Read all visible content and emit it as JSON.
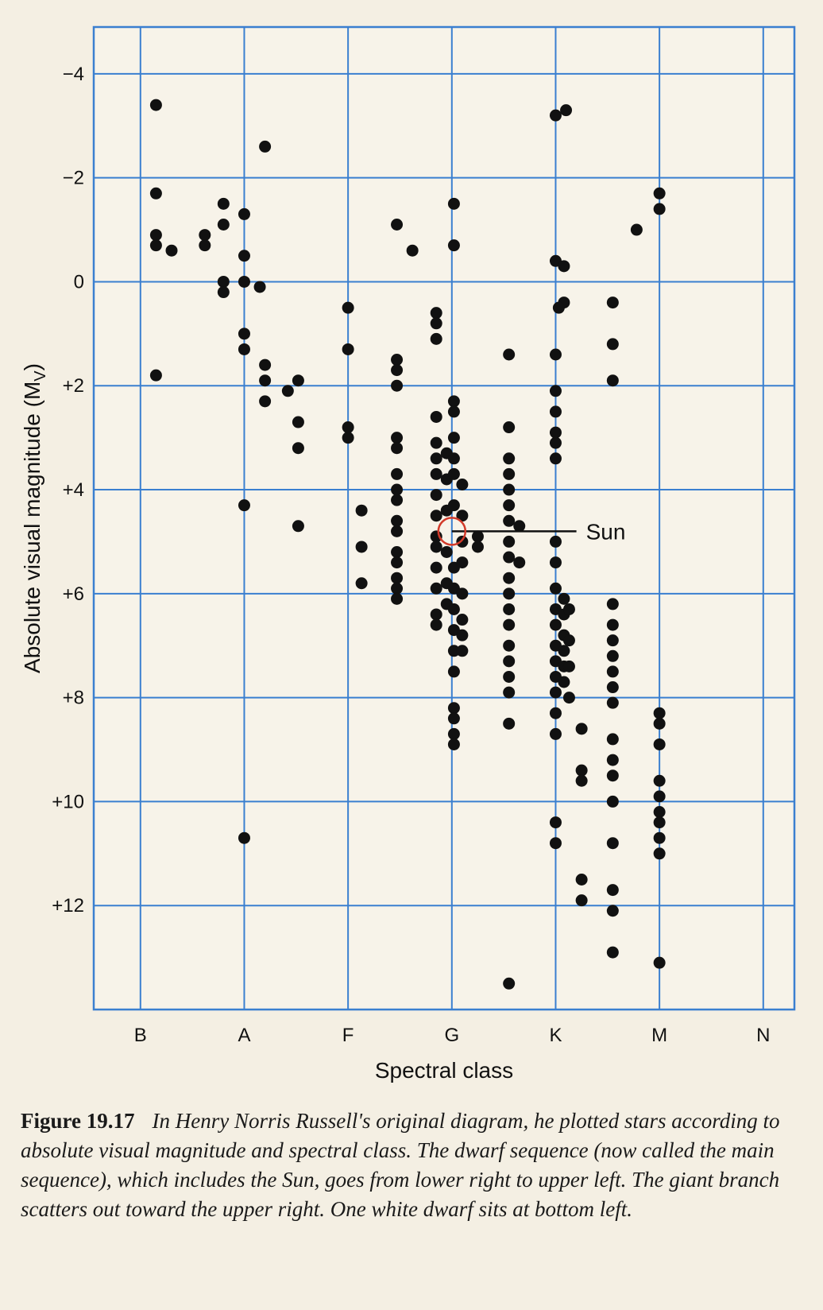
{
  "chart_data": {
    "type": "scatter",
    "title": "",
    "xlabel": "Spectral class",
    "ylabel": "Absolute visual magnitude (M",
    "ylabel_sub": "V",
    "ylabel_close": ")",
    "x_categories": [
      "B",
      "A",
      "F",
      "G",
      "K",
      "M",
      "N"
    ],
    "xlim": [
      -0.45,
      6.3
    ],
    "ylim": [
      14.0,
      -4.9
    ],
    "y_inverted": true,
    "y_ticks": [
      -4,
      -2,
      0,
      2,
      4,
      6,
      8,
      10,
      12
    ],
    "y_tick_labels": [
      "−4",
      "−2",
      "0",
      "+2",
      "+4",
      "+6",
      "+8",
      "+10",
      "+12"
    ],
    "grid": true,
    "grid_color": "#3a7fd0",
    "point_color": "#111111",
    "annotation": {
      "text": "Sun",
      "x": 3.0,
      "y": 4.8,
      "line_to_x": 4.2,
      "marker_color": "#d23a2a"
    },
    "points": [
      [
        0.15,
        -3.4
      ],
      [
        0.15,
        -1.7
      ],
      [
        0.15,
        -0.9
      ],
      [
        0.15,
        -0.7
      ],
      [
        0.3,
        -0.6
      ],
      [
        0.15,
        1.8
      ],
      [
        0.62,
        -0.9
      ],
      [
        0.62,
        -0.7
      ],
      [
        0.8,
        -1.5
      ],
      [
        0.8,
        -1.1
      ],
      [
        0.8,
        0
      ],
      [
        0.8,
        0.2
      ],
      [
        1.0,
        -1.3
      ],
      [
        1.0,
        -0.5
      ],
      [
        1.0,
        0
      ],
      [
        1.0,
        1.0
      ],
      [
        1.0,
        1.3
      ],
      [
        1.0,
        4.3
      ],
      [
        1.0,
        10.7
      ],
      [
        1.15,
        0.1
      ],
      [
        1.2,
        -2.6
      ],
      [
        1.2,
        1.6
      ],
      [
        1.2,
        1.9
      ],
      [
        1.2,
        2.3
      ],
      [
        1.42,
        2.1
      ],
      [
        1.52,
        1.9
      ],
      [
        1.52,
        2.7
      ],
      [
        1.52,
        3.2
      ],
      [
        1.52,
        4.7
      ],
      [
        2.0,
        0.5
      ],
      [
        2.0,
        1.3
      ],
      [
        2.0,
        2.8
      ],
      [
        2.0,
        3.0
      ],
      [
        2.13,
        4.4
      ],
      [
        2.13,
        5.1
      ],
      [
        2.13,
        5.8
      ],
      [
        2.47,
        -1.1
      ],
      [
        2.47,
        1.5
      ],
      [
        2.47,
        1.7
      ],
      [
        2.47,
        2.0
      ],
      [
        2.47,
        3.0
      ],
      [
        2.47,
        3.2
      ],
      [
        2.47,
        3.7
      ],
      [
        2.47,
        4.0
      ],
      [
        2.47,
        4.2
      ],
      [
        2.47,
        4.6
      ],
      [
        2.47,
        4.8
      ],
      [
        2.47,
        5.2
      ],
      [
        2.47,
        5.4
      ],
      [
        2.47,
        5.7
      ],
      [
        2.47,
        5.9
      ],
      [
        2.47,
        6.1
      ],
      [
        2.62,
        -0.6
      ],
      [
        2.85,
        0.6
      ],
      [
        2.85,
        0.8
      ],
      [
        2.85,
        1.1
      ],
      [
        2.85,
        2.6
      ],
      [
        2.85,
        3.1
      ],
      [
        2.85,
        3.4
      ],
      [
        2.85,
        3.7
      ],
      [
        2.85,
        4.1
      ],
      [
        2.85,
        4.5
      ],
      [
        2.85,
        4.9
      ],
      [
        2.85,
        5.1
      ],
      [
        2.85,
        5.5
      ],
      [
        2.85,
        5.9
      ],
      [
        2.85,
        6.4
      ],
      [
        2.85,
        6.6
      ],
      [
        2.95,
        3.3
      ],
      [
        2.95,
        3.8
      ],
      [
        2.95,
        4.4
      ],
      [
        2.95,
        5.2
      ],
      [
        2.95,
        5.8
      ],
      [
        2.95,
        6.2
      ],
      [
        3.02,
        -1.5
      ],
      [
        3.02,
        -0.7
      ],
      [
        3.02,
        2.3
      ],
      [
        3.02,
        2.5
      ],
      [
        3.02,
        3.0
      ],
      [
        3.02,
        3.4
      ],
      [
        3.02,
        3.7
      ],
      [
        3.02,
        4.3
      ],
      [
        3.02,
        5.5
      ],
      [
        3.02,
        5.9
      ],
      [
        3.02,
        6.3
      ],
      [
        3.02,
        6.7
      ],
      [
        3.02,
        7.1
      ],
      [
        3.02,
        7.5
      ],
      [
        3.02,
        8.2
      ],
      [
        3.02,
        8.4
      ],
      [
        3.02,
        8.7
      ],
      [
        3.02,
        8.9
      ],
      [
        3.1,
        3.9
      ],
      [
        3.1,
        4.5
      ],
      [
        3.1,
        5.0
      ],
      [
        3.1,
        5.4
      ],
      [
        3.1,
        6.0
      ],
      [
        3.1,
        6.5
      ],
      [
        3.1,
        6.8
      ],
      [
        3.1,
        7.1
      ],
      [
        3.25,
        4.9
      ],
      [
        3.25,
        5.1
      ],
      [
        3.55,
        1.4
      ],
      [
        3.55,
        2.8
      ],
      [
        3.55,
        3.4
      ],
      [
        3.55,
        3.7
      ],
      [
        3.55,
        4.0
      ],
      [
        3.55,
        4.3
      ],
      [
        3.55,
        4.6
      ],
      [
        3.55,
        5.0
      ],
      [
        3.55,
        5.3
      ],
      [
        3.55,
        5.7
      ],
      [
        3.55,
        6.0
      ],
      [
        3.55,
        6.3
      ],
      [
        3.55,
        6.6
      ],
      [
        3.55,
        7.0
      ],
      [
        3.55,
        7.3
      ],
      [
        3.55,
        7.6
      ],
      [
        3.55,
        7.9
      ],
      [
        3.55,
        8.5
      ],
      [
        3.55,
        13.5
      ],
      [
        3.65,
        4.7
      ],
      [
        3.65,
        5.4
      ],
      [
        4.0,
        -3.2
      ],
      [
        4.1,
        -3.3
      ],
      [
        4.0,
        -0.4
      ],
      [
        4.08,
        -0.3
      ],
      [
        4.08,
        0.4
      ],
      [
        4.03,
        0.5
      ],
      [
        4.0,
        1.4
      ],
      [
        4.0,
        2.1
      ],
      [
        4.0,
        2.5
      ],
      [
        4.0,
        2.9
      ],
      [
        4.0,
        3.1
      ],
      [
        4.0,
        3.4
      ],
      [
        4.0,
        5.0
      ],
      [
        4.0,
        5.4
      ],
      [
        4.0,
        5.9
      ],
      [
        4.0,
        6.3
      ],
      [
        4.0,
        6.6
      ],
      [
        4.0,
        7.0
      ],
      [
        4.0,
        7.3
      ],
      [
        4.0,
        7.6
      ],
      [
        4.0,
        7.9
      ],
      [
        4.0,
        8.3
      ],
      [
        4.0,
        8.7
      ],
      [
        4.0,
        10.4
      ],
      [
        4.0,
        10.8
      ],
      [
        4.08,
        6.1
      ],
      [
        4.08,
        6.4
      ],
      [
        4.08,
        6.8
      ],
      [
        4.08,
        7.1
      ],
      [
        4.08,
        7.4
      ],
      [
        4.08,
        7.7
      ],
      [
        4.13,
        6.3
      ],
      [
        4.13,
        6.9
      ],
      [
        4.13,
        7.4
      ],
      [
        4.13,
        8.0
      ],
      [
        4.25,
        8.6
      ],
      [
        4.25,
        9.4
      ],
      [
        4.25,
        9.6
      ],
      [
        4.25,
        11.5
      ],
      [
        4.25,
        11.9
      ],
      [
        4.55,
        0.4
      ],
      [
        4.55,
        1.2
      ],
      [
        4.55,
        1.9
      ],
      [
        4.55,
        6.2
      ],
      [
        4.55,
        6.6
      ],
      [
        4.55,
        6.9
      ],
      [
        4.55,
        7.2
      ],
      [
        4.55,
        7.5
      ],
      [
        4.55,
        7.8
      ],
      [
        4.55,
        8.1
      ],
      [
        4.55,
        8.8
      ],
      [
        4.55,
        9.2
      ],
      [
        4.55,
        9.5
      ],
      [
        4.55,
        10.0
      ],
      [
        4.55,
        10.8
      ],
      [
        4.55,
        11.7
      ],
      [
        4.55,
        12.1
      ],
      [
        4.55,
        12.9
      ],
      [
        4.78,
        -1.0
      ],
      [
        5.0,
        -1.7
      ],
      [
        5.0,
        -1.4
      ],
      [
        5.0,
        8.3
      ],
      [
        5.0,
        8.5
      ],
      [
        5.0,
        8.9
      ],
      [
        5.0,
        9.6
      ],
      [
        5.0,
        9.9
      ],
      [
        5.0,
        10.2
      ],
      [
        5.0,
        10.4
      ],
      [
        5.0,
        10.7
      ],
      [
        5.0,
        11.0
      ],
      [
        5.0,
        13.1
      ]
    ]
  },
  "caption": {
    "label": "Figure 19.17",
    "text": "In Henry Norris Russell's original diagram, he plotted stars according to absolute visual magnitude and spectral class. The dwarf sequence (now called the main sequence), which includes the Sun, goes from lower right to upper left. The giant branch scatters out toward the upper right. One white dwarf sits at bottom left."
  }
}
